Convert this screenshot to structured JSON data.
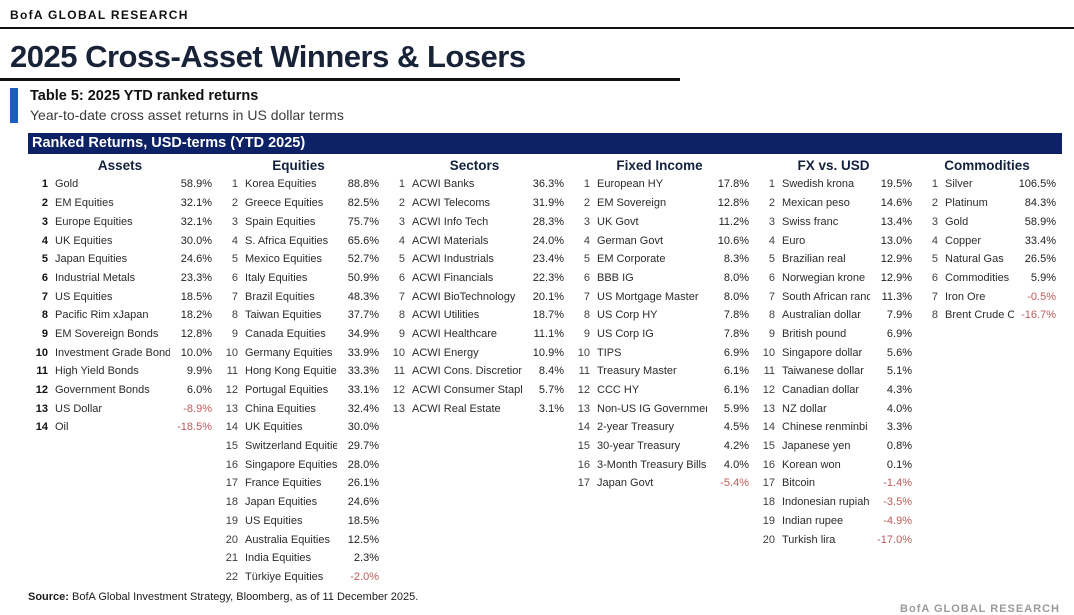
{
  "brand": {
    "header": "BofA GLOBAL RESEARCH",
    "footer": "BofA GLOBAL RESEARCH"
  },
  "page_title": "2025 Cross-Asset Winners & Losers",
  "caption": {
    "title": "Table 5: 2025 YTD ranked returns",
    "subtitle": "Year-to-date cross asset returns in US dollar terms"
  },
  "band_title": "Ranked Returns, USD-terms (YTD 2025)",
  "source": {
    "label": "Source:",
    "text": " BofA Global Investment Strategy, Bloomberg, as of 11 December 2025."
  },
  "colors": {
    "navy_band": "#0C2166",
    "title_navy": "#182338",
    "accent_blue": "#1F5BC4",
    "negative_red": "#BE5A5A",
    "text": "#262626"
  },
  "columns": [
    {
      "header": "Assets",
      "bold_ranks": true,
      "rows": [
        {
          "rank": "1",
          "name": "Gold",
          "value": "58.9%"
        },
        {
          "rank": "2",
          "name": "EM Equities",
          "value": "32.1%"
        },
        {
          "rank": "3",
          "name": "Europe Equities",
          "value": "32.1%"
        },
        {
          "rank": "4",
          "name": "UK Equities",
          "value": "30.0%"
        },
        {
          "rank": "5",
          "name": "Japan Equities",
          "value": "24.6%"
        },
        {
          "rank": "6",
          "name": "Industrial Metals",
          "value": "23.3%"
        },
        {
          "rank": "7",
          "name": "US Equities",
          "value": "18.5%"
        },
        {
          "rank": "8",
          "name": "Pacific Rim xJapan",
          "value": "18.2%"
        },
        {
          "rank": "9",
          "name": "EM Sovereign Bonds",
          "value": "12.8%"
        },
        {
          "rank": "10",
          "name": "Investment Grade Bonds",
          "value": "10.0%"
        },
        {
          "rank": "11",
          "name": "High Yield Bonds",
          "value": "9.9%"
        },
        {
          "rank": "12",
          "name": "Government Bonds",
          "value": "6.0%"
        },
        {
          "rank": "13",
          "name": "US Dollar",
          "value": "-8.9%"
        },
        {
          "rank": "14",
          "name": "Oil",
          "value": "-18.5%"
        }
      ]
    },
    {
      "header": "Equities",
      "bold_ranks": false,
      "rows": [
        {
          "rank": "1",
          "name": "Korea Equities",
          "value": "88.8%"
        },
        {
          "rank": "2",
          "name": "Greece Equities",
          "value": "82.5%"
        },
        {
          "rank": "3",
          "name": "Spain Equities",
          "value": "75.7%"
        },
        {
          "rank": "4",
          "name": "S. Africa Equities",
          "value": "65.6%"
        },
        {
          "rank": "5",
          "name": "Mexico Equities",
          "value": "52.7%"
        },
        {
          "rank": "6",
          "name": "Italy Equities",
          "value": "50.9%"
        },
        {
          "rank": "7",
          "name": "Brazil Equities",
          "value": "48.3%"
        },
        {
          "rank": "8",
          "name": "Taiwan Equities",
          "value": "37.7%"
        },
        {
          "rank": "9",
          "name": "Canada Equities",
          "value": "34.9%"
        },
        {
          "rank": "10",
          "name": "Germany Equities",
          "value": "33.9%"
        },
        {
          "rank": "11",
          "name": "Hong Kong Equities",
          "value": "33.3%"
        },
        {
          "rank": "12",
          "name": "Portugal Equities",
          "value": "33.1%"
        },
        {
          "rank": "13",
          "name": "China Equities",
          "value": "32.4%"
        },
        {
          "rank": "14",
          "name": "UK Equities",
          "value": "30.0%"
        },
        {
          "rank": "15",
          "name": "Switzerland Equities",
          "value": "29.7%"
        },
        {
          "rank": "16",
          "name": "Singapore Equities",
          "value": "28.0%"
        },
        {
          "rank": "17",
          "name": "France Equities",
          "value": "26.1%"
        },
        {
          "rank": "18",
          "name": "Japan Equities",
          "value": "24.6%"
        },
        {
          "rank": "19",
          "name": "US Equities",
          "value": "18.5%"
        },
        {
          "rank": "20",
          "name": "Australia Equities",
          "value": "12.5%"
        },
        {
          "rank": "21",
          "name": "India Equities",
          "value": "2.3%"
        },
        {
          "rank": "22",
          "name": "Türkiye Equities",
          "value": "-2.0%"
        }
      ]
    },
    {
      "header": "Sectors",
      "bold_ranks": false,
      "rows": [
        {
          "rank": "1",
          "name": "ACWI Banks",
          "value": "36.3%"
        },
        {
          "rank": "2",
          "name": "ACWI Telecoms",
          "value": "31.9%"
        },
        {
          "rank": "3",
          "name": "ACWI Info Tech",
          "value": "28.3%"
        },
        {
          "rank": "4",
          "name": "ACWI Materials",
          "value": "24.0%"
        },
        {
          "rank": "5",
          "name": "ACWI Industrials",
          "value": "23.4%"
        },
        {
          "rank": "6",
          "name": "ACWI Financials",
          "value": "22.3%"
        },
        {
          "rank": "7",
          "name": "ACWI BioTechnology",
          "value": "20.1%"
        },
        {
          "rank": "8",
          "name": "ACWI Utilities",
          "value": "18.7%"
        },
        {
          "rank": "9",
          "name": "ACWI Healthcare",
          "value": "11.1%"
        },
        {
          "rank": "10",
          "name": "ACWI Energy",
          "value": "10.9%"
        },
        {
          "rank": "11",
          "name": "ACWI Cons. Discretionary",
          "value": "8.4%"
        },
        {
          "rank": "12",
          "name": "ACWI Consumer Staples",
          "value": "5.7%"
        },
        {
          "rank": "13",
          "name": "ACWI Real Estate",
          "value": "3.1%"
        }
      ]
    },
    {
      "header": "Fixed Income",
      "bold_ranks": false,
      "rows": [
        {
          "rank": "1",
          "name": "European HY",
          "value": "17.8%"
        },
        {
          "rank": "2",
          "name": "EM Sovereign",
          "value": "12.8%"
        },
        {
          "rank": "3",
          "name": "UK Govt",
          "value": "11.2%"
        },
        {
          "rank": "4",
          "name": "German Govt",
          "value": "10.6%"
        },
        {
          "rank": "5",
          "name": "EM Corporate",
          "value": "8.3%"
        },
        {
          "rank": "6",
          "name": "BBB IG",
          "value": "8.0%"
        },
        {
          "rank": "7",
          "name": "US Mortgage Master",
          "value": "8.0%"
        },
        {
          "rank": "8",
          "name": "US Corp HY",
          "value": "7.8%"
        },
        {
          "rank": "9",
          "name": "US Corp IG",
          "value": "7.8%"
        },
        {
          "rank": "10",
          "name": "TIPS",
          "value": "6.9%"
        },
        {
          "rank": "11",
          "name": "Treasury Master",
          "value": "6.1%"
        },
        {
          "rank": "12",
          "name": "CCC HY",
          "value": "6.1%"
        },
        {
          "rank": "13",
          "name": "Non-US IG Government",
          "value": "5.9%"
        },
        {
          "rank": "14",
          "name": "2-year Treasury",
          "value": "4.5%"
        },
        {
          "rank": "15",
          "name": "30-year Treasury",
          "value": "4.2%"
        },
        {
          "rank": "16",
          "name": "3-Month Treasury Bills",
          "value": "4.0%"
        },
        {
          "rank": "17",
          "name": "Japan Govt",
          "value": "-5.4%"
        }
      ]
    },
    {
      "header": "FX vs. USD",
      "bold_ranks": false,
      "rows": [
        {
          "rank": "1",
          "name": "Swedish krona",
          "value": "19.5%"
        },
        {
          "rank": "2",
          "name": "Mexican peso",
          "value": "14.6%"
        },
        {
          "rank": "3",
          "name": "Swiss franc",
          "value": "13.4%"
        },
        {
          "rank": "4",
          "name": "Euro",
          "value": "13.0%"
        },
        {
          "rank": "5",
          "name": "Brazilian real",
          "value": "12.9%"
        },
        {
          "rank": "6",
          "name": "Norwegian krone",
          "value": "12.9%"
        },
        {
          "rank": "7",
          "name": "South African rand",
          "value": "11.3%"
        },
        {
          "rank": "8",
          "name": "Australian dollar",
          "value": "7.9%"
        },
        {
          "rank": "9",
          "name": "British pound",
          "value": "6.9%"
        },
        {
          "rank": "10",
          "name": "Singapore dollar",
          "value": "5.6%"
        },
        {
          "rank": "11",
          "name": "Taiwanese dollar",
          "value": "5.1%"
        },
        {
          "rank": "12",
          "name": "Canadian dollar",
          "value": "4.3%"
        },
        {
          "rank": "13",
          "name": "NZ dollar",
          "value": "4.0%"
        },
        {
          "rank": "14",
          "name": "Chinese renminbi",
          "value": "3.3%"
        },
        {
          "rank": "15",
          "name": "Japanese yen",
          "value": "0.8%"
        },
        {
          "rank": "16",
          "name": "Korean won",
          "value": "0.1%"
        },
        {
          "rank": "17",
          "name": "Bitcoin",
          "value": "-1.4%"
        },
        {
          "rank": "18",
          "name": "Indonesian rupiah",
          "value": "-3.5%"
        },
        {
          "rank": "19",
          "name": "Indian rupee",
          "value": "-4.9%"
        },
        {
          "rank": "20",
          "name": "Turkish lira",
          "value": "-17.0%"
        }
      ]
    },
    {
      "header": "Commodities",
      "bold_ranks": false,
      "rows": [
        {
          "rank": "1",
          "name": "Silver",
          "value": "106.5%"
        },
        {
          "rank": "2",
          "name": "Platinum",
          "value": "84.3%"
        },
        {
          "rank": "3",
          "name": "Gold",
          "value": "58.9%"
        },
        {
          "rank": "4",
          "name": "Copper",
          "value": "33.4%"
        },
        {
          "rank": "5",
          "name": "Natural Gas",
          "value": "26.5%"
        },
        {
          "rank": "6",
          "name": "Commodities",
          "value": "5.9%"
        },
        {
          "rank": "7",
          "name": "Iron Ore",
          "value": "-0.5%"
        },
        {
          "rank": "8",
          "name": "Brent Crude Oil",
          "value": "-16.7%"
        }
      ]
    }
  ]
}
